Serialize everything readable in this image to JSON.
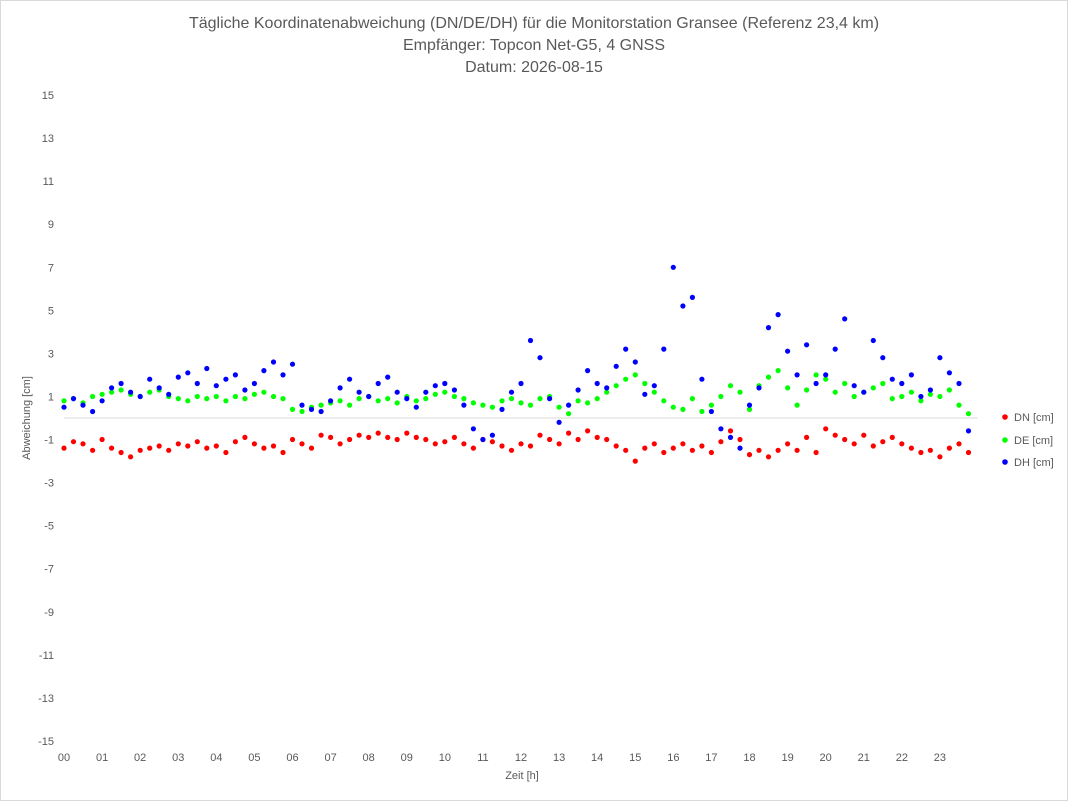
{
  "chart_data": {
    "type": "scatter",
    "title_lines": [
      "Tägliche Koordinatenabweichung (DN/DE/DH) für die Monitorstation Gransee (Referenz 23,4 km)",
      "Empfänger: Topcon Net-G5, 4 GNSS",
      "Datum: 2026-08-15"
    ],
    "xlabel": "Zeit [h]",
    "ylabel": "Abweichung [cm]",
    "xlim": [
      0,
      24
    ],
    "ylim": [
      -15,
      15
    ],
    "x_tick_labels": [
      "00",
      "01",
      "02",
      "03",
      "04",
      "05",
      "06",
      "07",
      "08",
      "09",
      "10",
      "11",
      "12",
      "13",
      "14",
      "15",
      "16",
      "17",
      "18",
      "19",
      "20",
      "21",
      "22",
      "23"
    ],
    "y_tick_labels": [
      "15",
      "13",
      "11",
      "9",
      "7",
      "5",
      "3",
      "1",
      "-1",
      "-3",
      "-5",
      "-7",
      "-9",
      "-11",
      "-13",
      "-15"
    ],
    "legend_position": "right",
    "series": [
      {
        "name": "DN [cm]",
        "color": "#ff0000",
        "x": [
          0.0,
          0.25,
          0.5,
          0.75,
          1.0,
          1.25,
          1.5,
          1.75,
          2.0,
          2.25,
          2.5,
          2.75,
          3.0,
          3.25,
          3.5,
          3.75,
          4.0,
          4.25,
          4.5,
          4.75,
          5.0,
          5.25,
          5.5,
          5.75,
          6.0,
          6.25,
          6.5,
          6.75,
          7.0,
          7.25,
          7.5,
          7.75,
          8.0,
          8.25,
          8.5,
          8.75,
          9.0,
          9.25,
          9.5,
          9.75,
          10.0,
          10.25,
          10.5,
          10.75,
          11.0,
          11.25,
          11.5,
          11.75,
          12.0,
          12.25,
          12.5,
          12.75,
          13.0,
          13.25,
          13.5,
          13.75,
          14.0,
          14.25,
          14.5,
          14.75,
          15.0,
          15.25,
          15.5,
          15.75,
          16.0,
          16.25,
          16.5,
          16.75,
          17.0,
          17.25,
          17.5,
          17.75,
          18.0,
          18.25,
          18.5,
          18.75,
          19.0,
          19.25,
          19.5,
          19.75,
          20.0,
          20.25,
          20.5,
          20.75,
          21.0,
          21.25,
          21.5,
          21.75,
          22.0,
          22.25,
          22.5,
          22.75,
          23.0,
          23.25,
          23.5,
          23.75
        ],
        "y": [
          -1.4,
          -1.1,
          -1.2,
          -1.5,
          -1.0,
          -1.4,
          -1.6,
          -1.8,
          -1.5,
          -1.4,
          -1.3,
          -1.5,
          -1.2,
          -1.3,
          -1.1,
          -1.4,
          -1.3,
          -1.6,
          -1.1,
          -0.9,
          -1.2,
          -1.4,
          -1.3,
          -1.6,
          -1.0,
          -1.2,
          -1.4,
          -0.8,
          -0.9,
          -1.2,
          -1.0,
          -0.8,
          -0.9,
          -0.7,
          -0.9,
          -1.0,
          -0.7,
          -0.9,
          -1.0,
          -1.2,
          -1.1,
          -0.9,
          -1.2,
          -1.4,
          -1.0,
          -1.1,
          -1.3,
          -1.5,
          -1.2,
          -1.3,
          -0.8,
          -1.0,
          -1.2,
          -0.7,
          -1.0,
          -0.6,
          -0.9,
          -1.0,
          -1.3,
          -1.5,
          -2.0,
          -1.4,
          -1.2,
          -1.6,
          -1.4,
          -1.2,
          -1.5,
          -1.3,
          -1.6,
          -1.1,
          -0.6,
          -1.0,
          -1.7,
          -1.5,
          -1.8,
          -1.5,
          -1.2,
          -1.5,
          -0.9,
          -1.6,
          -0.5,
          -0.8,
          -1.0,
          -1.2,
          -0.8,
          -1.3,
          -1.1,
          -0.9,
          -1.2,
          -1.4,
          -1.6,
          -1.5,
          -1.8,
          -1.4,
          -1.2,
          -1.6
        ]
      },
      {
        "name": "DE [cm]",
        "color": "#00ff00",
        "x": [
          0.0,
          0.25,
          0.5,
          0.75,
          1.0,
          1.25,
          1.5,
          1.75,
          2.0,
          2.25,
          2.5,
          2.75,
          3.0,
          3.25,
          3.5,
          3.75,
          4.0,
          4.25,
          4.5,
          4.75,
          5.0,
          5.25,
          5.5,
          5.75,
          6.0,
          6.25,
          6.5,
          6.75,
          7.0,
          7.25,
          7.5,
          7.75,
          8.0,
          8.25,
          8.5,
          8.75,
          9.0,
          9.25,
          9.5,
          9.75,
          10.0,
          10.25,
          10.5,
          10.75,
          11.0,
          11.25,
          11.5,
          11.75,
          12.0,
          12.25,
          12.5,
          12.75,
          13.0,
          13.25,
          13.5,
          13.75,
          14.0,
          14.25,
          14.5,
          14.75,
          15.0,
          15.25,
          15.5,
          15.75,
          16.0,
          16.25,
          16.5,
          16.75,
          17.0,
          17.25,
          17.5,
          17.75,
          18.0,
          18.25,
          18.5,
          18.75,
          19.0,
          19.25,
          19.5,
          19.75,
          20.0,
          20.25,
          20.5,
          20.75,
          21.0,
          21.25,
          21.5,
          21.75,
          22.0,
          22.25,
          22.5,
          22.75,
          23.0,
          23.25,
          23.5,
          23.75
        ],
        "y": [
          0.8,
          0.9,
          0.7,
          1.0,
          1.1,
          1.2,
          1.3,
          1.1,
          1.0,
          1.2,
          1.3,
          1.0,
          0.9,
          0.8,
          1.0,
          0.9,
          1.0,
          0.8,
          1.0,
          0.9,
          1.1,
          1.2,
          1.0,
          0.9,
          0.4,
          0.3,
          0.5,
          0.6,
          0.7,
          0.8,
          0.6,
          0.9,
          1.0,
          0.8,
          0.9,
          0.7,
          1.0,
          0.8,
          0.9,
          1.1,
          1.2,
          1.0,
          0.9,
          0.7,
          0.6,
          0.5,
          0.8,
          0.9,
          0.7,
          0.6,
          0.9,
          1.0,
          0.5,
          0.2,
          0.8,
          0.7,
          0.9,
          1.2,
          1.5,
          1.8,
          2.0,
          1.6,
          1.2,
          0.8,
          0.5,
          0.4,
          0.9,
          0.3,
          0.6,
          1.0,
          1.5,
          1.2,
          0.4,
          1.5,
          1.9,
          2.2,
          1.4,
          0.6,
          1.3,
          2.0,
          1.8,
          1.2,
          1.6,
          1.0,
          1.2,
          1.4,
          1.6,
          0.9,
          1.0,
          1.2,
          0.8,
          1.1,
          1.0,
          1.3,
          0.6,
          0.2
        ]
      },
      {
        "name": "DH [cm]",
        "color": "#0000ff",
        "x": [
          0.0,
          0.25,
          0.5,
          0.75,
          1.0,
          1.25,
          1.5,
          1.75,
          2.0,
          2.25,
          2.5,
          2.75,
          3.0,
          3.25,
          3.5,
          3.75,
          4.0,
          4.25,
          4.5,
          4.75,
          5.0,
          5.25,
          5.5,
          5.75,
          6.0,
          6.25,
          6.5,
          6.75,
          7.0,
          7.25,
          7.5,
          7.75,
          8.0,
          8.25,
          8.5,
          8.75,
          9.0,
          9.25,
          9.5,
          9.75,
          10.0,
          10.25,
          10.5,
          10.75,
          11.0,
          11.25,
          11.5,
          11.75,
          12.0,
          12.25,
          12.5,
          12.75,
          13.0,
          13.25,
          13.5,
          13.75,
          14.0,
          14.25,
          14.5,
          14.75,
          15.0,
          15.25,
          15.5,
          15.75,
          16.0,
          16.25,
          16.5,
          16.75,
          17.0,
          17.25,
          17.5,
          17.75,
          18.0,
          18.25,
          18.5,
          18.75,
          19.0,
          19.25,
          19.5,
          19.75,
          20.0,
          20.25,
          20.5,
          20.75,
          21.0,
          21.25,
          21.5,
          21.75,
          22.0,
          22.25,
          22.5,
          22.75,
          23.0,
          23.25,
          23.5,
          23.75
        ],
        "y": [
          0.5,
          0.9,
          0.6,
          0.3,
          0.8,
          1.4,
          1.6,
          1.2,
          1.0,
          1.8,
          1.4,
          1.1,
          1.9,
          2.1,
          1.6,
          2.3,
          1.5,
          1.8,
          2.0,
          1.3,
          1.6,
          2.2,
          2.6,
          2.0,
          2.5,
          0.6,
          0.4,
          0.3,
          0.8,
          1.4,
          1.8,
          1.2,
          1.0,
          1.6,
          1.9,
          1.2,
          0.9,
          0.5,
          1.2,
          1.5,
          1.6,
          1.3,
          0.6,
          -0.5,
          -1.0,
          -0.8,
          0.4,
          1.2,
          1.6,
          3.6,
          2.8,
          0.9,
          -0.2,
          0.6,
          1.3,
          2.2,
          1.6,
          1.4,
          2.4,
          3.2,
          2.6,
          1.1,
          1.5,
          3.2,
          7.0,
          5.2,
          5.6,
          1.8,
          0.3,
          -0.5,
          -0.9,
          -1.4,
          0.6,
          1.4,
          4.2,
          4.8,
          3.1,
          2.0,
          3.4,
          1.6,
          2.0,
          3.2,
          4.6,
          1.5,
          1.2,
          3.6,
          2.8,
          1.8,
          1.6,
          2.0,
          1.0,
          1.3,
          2.8,
          2.1,
          1.6,
          -0.6
        ]
      }
    ]
  }
}
